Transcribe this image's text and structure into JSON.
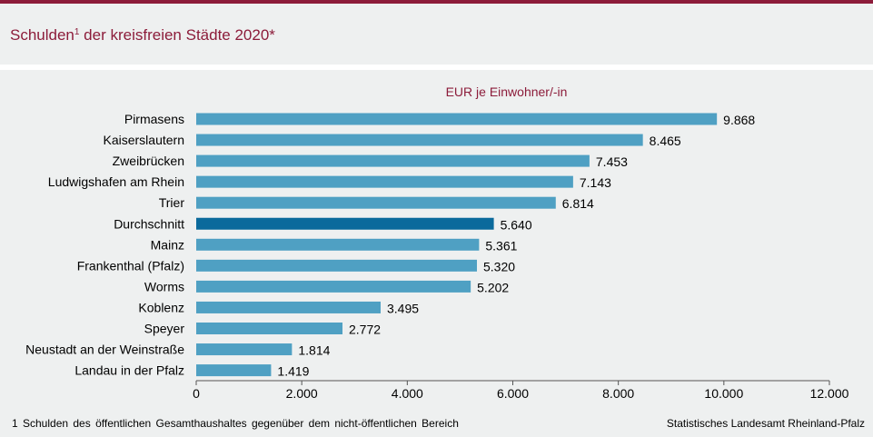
{
  "title": "Schulden",
  "title_sup": "1",
  "title_rest": " der kreisfreien Städte 2020*",
  "footnote": "1 Schulden des öffentlichen Gesamthaushaltes gegenüber dem nicht-öffentlichen Bereich",
  "source": "Statistisches Landesamt Rheinland-Pfalz",
  "colors": {
    "bar": "#4fa0c3",
    "highlight": "#0b6a9c",
    "accent": "#8c1c3a"
  },
  "chart_data": {
    "type": "bar",
    "orientation": "horizontal",
    "unit_label": "EUR je Einwohner/-in",
    "categories": [
      "Pirmasens",
      "Kaiserslautern",
      "Zweibrücken",
      "Ludwigshafen am Rhein",
      "Trier",
      "Durchschnitt",
      "Mainz",
      "Frankenthal (Pfalz)",
      "Worms",
      "Koblenz",
      "Speyer",
      "Neustadt an der Weinstraße",
      "Landau in der Pfalz"
    ],
    "values": [
      9868,
      8465,
      7453,
      7143,
      6814,
      5640,
      5361,
      5320,
      5202,
      3495,
      2772,
      1814,
      1419
    ],
    "value_labels": [
      "9.868",
      "8.465",
      "7.453",
      "7.143",
      "6.814",
      "5.640",
      "5.361",
      "5.320",
      "5.202",
      "3.495",
      "2.772",
      "1.814",
      "1.419"
    ],
    "highlight": "Durchschnitt",
    "xlim": [
      0,
      12000
    ],
    "xticks": [
      0,
      2000,
      4000,
      6000,
      8000,
      10000,
      12000
    ],
    "xtick_labels": [
      "0",
      "2.000",
      "4.000",
      "6.000",
      "8.000",
      "10.000",
      "12.000"
    ]
  }
}
